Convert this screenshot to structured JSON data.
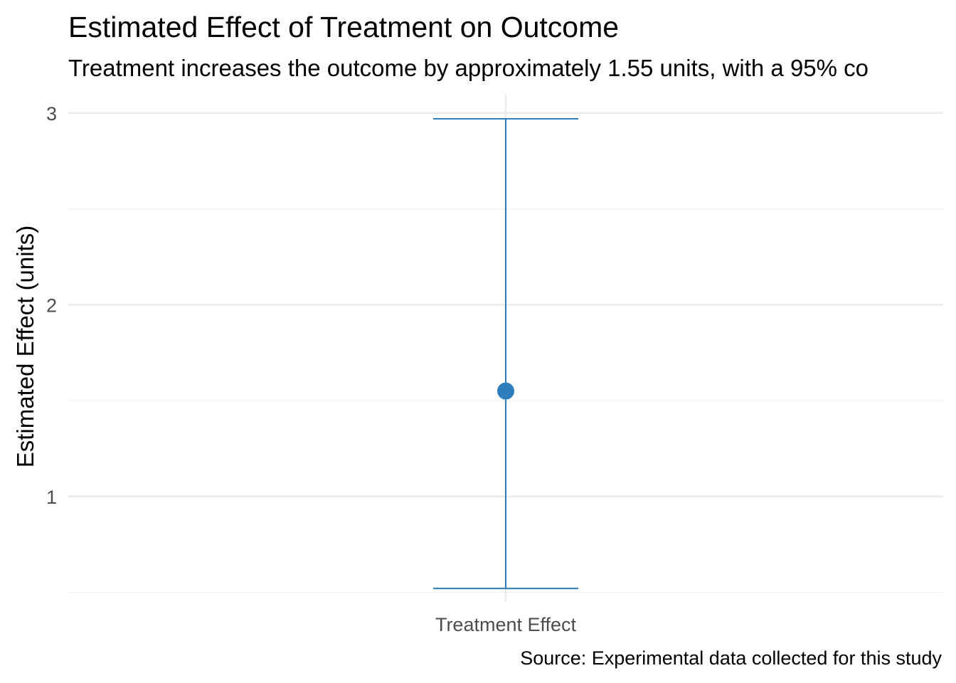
{
  "chart_data": {
    "type": "errorbar",
    "title": "Estimated Effect of Treatment on Outcome",
    "subtitle": "Treatment increases the outcome by approximately 1.55 units, with a 95% co",
    "caption": "Source: Experimental data collected for this study",
    "xlabel": "",
    "ylabel": "Estimated Effect (units)",
    "categories": [
      "Treatment Effect"
    ],
    "series": [
      {
        "estimate": [
          1.55
        ],
        "lower": [
          0.52
        ],
        "upper": [
          2.97
        ]
      }
    ],
    "ylim": [
      0.45,
      3.1
    ],
    "y_ticks": [
      1,
      2,
      3
    ],
    "y_tick_labels": [
      "1",
      "2",
      "3"
    ],
    "grid": true,
    "legend": "none",
    "colors": {
      "point": "#2e7ebc",
      "errorbar": "#2e7ebc",
      "grid_major": "#ebebeb",
      "grid_minor": "#f2f2f2"
    }
  }
}
